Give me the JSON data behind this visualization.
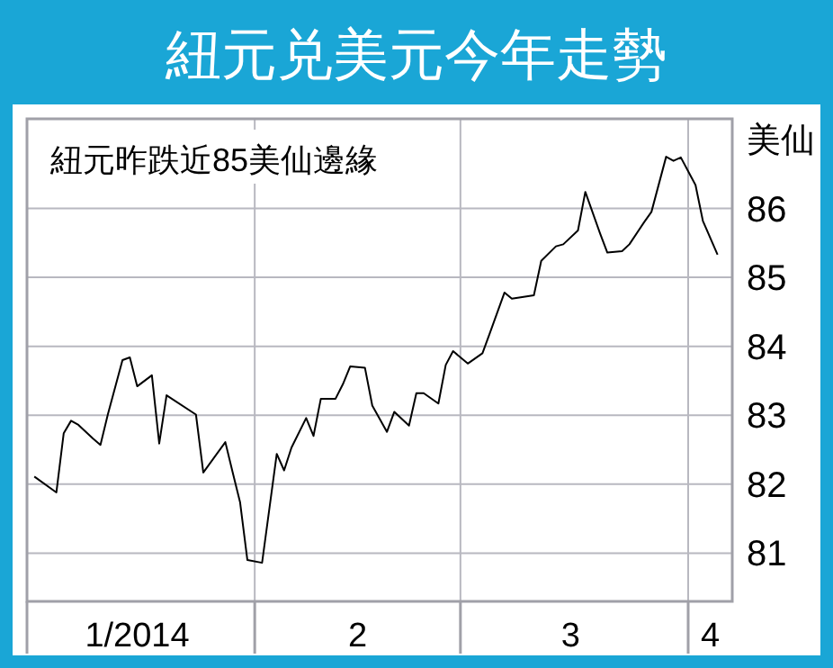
{
  "chart_data": {
    "type": "line",
    "title": "紐元兑美元今年走勢",
    "ylabel": "美仙",
    "annotations": [
      "紐元昨跌近85美仙邊緣"
    ],
    "x": [
      "2014-01-02",
      "2014-01-05",
      "2014-01-06",
      "2014-01-07",
      "2014-01-08",
      "2014-01-10",
      "2014-01-11",
      "2014-01-12",
      "2014-01-14",
      "2014-01-15",
      "2014-01-16",
      "2014-01-18",
      "2014-01-19",
      "2014-01-20",
      "2014-01-24",
      "2014-01-25",
      "2014-01-28",
      "2014-01-29",
      "2014-01-30",
      "2014-01-31",
      "2014-02-02",
      "2014-02-04",
      "2014-02-05",
      "2014-02-06",
      "2014-02-08",
      "2014-02-09",
      "2014-02-10",
      "2014-02-12",
      "2014-02-13",
      "2014-02-14",
      "2014-02-16",
      "2014-02-17",
      "2014-02-19",
      "2014-02-20",
      "2014-02-22",
      "2014-02-23",
      "2014-02-24",
      "2014-02-26",
      "2014-02-27",
      "2014-02-28",
      "2014-03-02",
      "2014-03-04",
      "2014-03-05",
      "2014-03-07",
      "2014-03-08",
      "2014-03-11",
      "2014-03-12",
      "2014-03-14",
      "2014-03-15",
      "2014-03-17",
      "2014-03-18",
      "2014-03-20",
      "2014-03-21",
      "2014-03-23",
      "2014-03-24",
      "2014-03-26",
      "2014-03-27",
      "2014-03-29",
      "2014-03-30",
      "2014-03-31",
      "2014-04-02",
      "2014-04-03",
      "2014-04-05"
    ],
    "series": [
      {
        "color": "#000000",
        "values": [
          82.11,
          81.88,
          82.74,
          82.92,
          82.86,
          82.66,
          82.57,
          83.01,
          83.8,
          83.84,
          83.42,
          83.58,
          82.59,
          83.29,
          83.01,
          82.17,
          82.61,
          82.17,
          81.74,
          80.9,
          80.86,
          82.44,
          82.2,
          82.53,
          82.96,
          82.7,
          83.24,
          83.24,
          83.45,
          83.71,
          83.69,
          83.14,
          82.76,
          83.05,
          82.85,
          83.32,
          83.32,
          83.17,
          83.73,
          83.93,
          83.75,
          83.9,
          84.19,
          84.78,
          84.69,
          84.74,
          85.24,
          85.45,
          85.48,
          85.68,
          86.24,
          85.64,
          85.36,
          85.38,
          85.48,
          85.8,
          85.95,
          86.75,
          86.69,
          86.74,
          86.34,
          85.82,
          85.33
        ]
      }
    ],
    "xlim": [
      "2014-01-01",
      "2014-04-07"
    ],
    "xticks": [
      {
        "value": "2014-01-01",
        "label": null
      },
      {
        "value": "2014-01-16",
        "label": "1/2014"
      },
      {
        "value": "2014-02-01",
        "label": null
      },
      {
        "value": "2014-02-15",
        "label": "2"
      },
      {
        "value": "2014-03-01",
        "label": null
      },
      {
        "value": "2014-03-16",
        "label": "3"
      },
      {
        "value": "2014-04-01",
        "label": null
      },
      {
        "value": "2014-04-04",
        "label": "4"
      }
    ],
    "ylim": [
      80.3,
      87.3
    ],
    "yticks": [
      81,
      82,
      83,
      84,
      85,
      86
    ],
    "grid": true,
    "marker": "none",
    "line_style": "solid"
  }
}
